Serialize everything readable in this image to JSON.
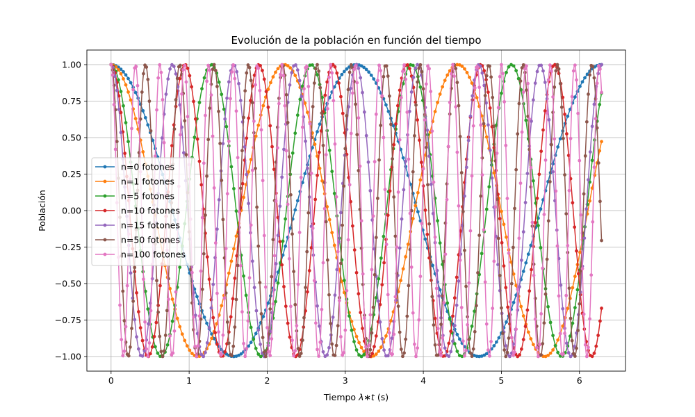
{
  "chart_data": {
    "type": "line",
    "title": "Evolución de la población en función del tiempo",
    "xlabel_prefix": "Tiempo ",
    "xlabel_math": "λ∗t",
    "xlabel_suffix": " (s)",
    "ylabel": "Población",
    "xlim": [
      -0.31,
      6.59
    ],
    "ylim": [
      -1.1,
      1.1
    ],
    "x_range": [
      0,
      6.2832
    ],
    "x_ticks": [
      0,
      1,
      2,
      3,
      4,
      5,
      6
    ],
    "y_ticks": [
      -1.0,
      -0.75,
      -0.5,
      -0.25,
      0.0,
      0.25,
      0.5,
      0.75,
      1.0
    ],
    "x_tick_labels": [
      "0",
      "1",
      "2",
      "3",
      "4",
      "5",
      "6"
    ],
    "y_tick_labels": [
      "−1.00",
      "−0.75",
      "−0.50",
      "−0.25",
      "0.00",
      "0.25",
      "0.50",
      "0.75",
      "1.00"
    ],
    "function": "cos(2·sqrt(n+1)·t)",
    "grid": true,
    "legend_position": "center-left",
    "series": [
      {
        "name": "n=0 fotones",
        "n": 0,
        "color": "#1f77b4"
      },
      {
        "name": "n=1 fotones",
        "n": 1,
        "color": "#ff7f0e"
      },
      {
        "name": "n=5 fotones",
        "n": 5,
        "color": "#2ca02c"
      },
      {
        "name": "n=10 fotones",
        "n": 10,
        "color": "#d62728"
      },
      {
        "name": "n=15 fotones",
        "n": 15,
        "color": "#9467bd"
      },
      {
        "name": "n=50 fotones",
        "n": 50,
        "color": "#8c564b"
      },
      {
        "name": "n=100 fotones",
        "n": 100,
        "color": "#e377c2"
      }
    ]
  }
}
